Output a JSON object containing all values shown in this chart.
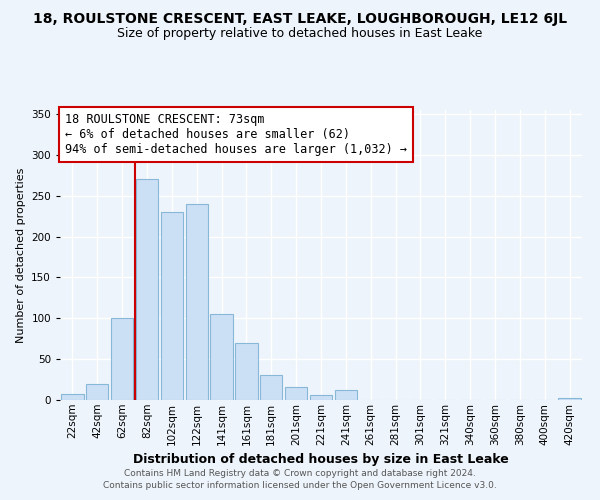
{
  "title": "18, ROULSTONE CRESCENT, EAST LEAKE, LOUGHBOROUGH, LE12 6JL",
  "subtitle": "Size of property relative to detached houses in East Leake",
  "xlabel": "Distribution of detached houses by size in East Leake",
  "ylabel": "Number of detached properties",
  "bar_labels": [
    "22sqm",
    "42sqm",
    "62sqm",
    "82sqm",
    "102sqm",
    "122sqm",
    "141sqm",
    "161sqm",
    "181sqm",
    "201sqm",
    "221sqm",
    "241sqm",
    "261sqm",
    "281sqm",
    "301sqm",
    "321sqm",
    "340sqm",
    "360sqm",
    "380sqm",
    "400sqm",
    "420sqm"
  ],
  "bar_values": [
    7,
    20,
    100,
    270,
    230,
    240,
    105,
    70,
    30,
    16,
    6,
    12,
    0,
    0,
    0,
    0,
    0,
    0,
    0,
    0,
    2
  ],
  "bar_color": "#cce0f5",
  "bar_edge_color": "#88b8d8",
  "vline_color": "#cc0000",
  "vline_bar_index": 3,
  "annotation_title": "18 ROULSTONE CRESCENT: 73sqm",
  "annotation_line1": "← 6% of detached houses are smaller (62)",
  "annotation_line2": "94% of semi-detached houses are larger (1,032) →",
  "annotation_box_color": "#ffffff",
  "annotation_box_edge": "#cc0000",
  "ylim": [
    0,
    355
  ],
  "yticks": [
    0,
    50,
    100,
    150,
    200,
    250,
    300,
    350
  ],
  "footer1": "Contains HM Land Registry data © Crown copyright and database right 2024.",
  "footer2": "Contains public sector information licensed under the Open Government Licence v3.0.",
  "background_color": "#eef4fb",
  "grid_color": "#ffffff",
  "title_fontsize": 10,
  "subtitle_fontsize": 9,
  "ylabel_fontsize": 8,
  "xlabel_fontsize": 9,
  "tick_fontsize": 7.5,
  "annotation_fontsize": 8.5,
  "footer_fontsize": 6.5
}
